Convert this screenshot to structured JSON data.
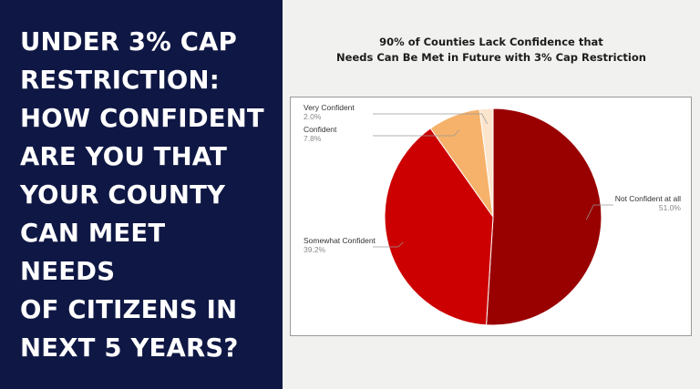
{
  "headline": {
    "lines": [
      "UNDER 3% CAP",
      "RESTRICTION:",
      "HOW CONFIDENT",
      "ARE YOU THAT",
      "YOUR COUNTY",
      "CAN MEET NEEDS",
      "OF CITIZENS IN",
      "NEXT 5 YEARS?"
    ]
  },
  "chart_data": {
    "type": "pie",
    "title_lines": [
      "90% of Counties Lack Confidence that",
      "Needs Can Be Met in Future with 3% Cap Restriction"
    ],
    "slices": [
      {
        "label": "Not Confident at all",
        "value": 51.0,
        "value_label": "51.0%",
        "color": "#990000",
        "label_side": "right"
      },
      {
        "label": "Somewhat Confident",
        "value": 39.2,
        "value_label": "39.2%",
        "color": "#cc0000",
        "label_side": "left"
      },
      {
        "label": "Confident",
        "value": 7.8,
        "value_label": "7.8%",
        "color": "#f6b26b",
        "label_side": "left"
      },
      {
        "label": "Very Confident",
        "value": 2.0,
        "value_label": "2.0%",
        "color": "#fce5cd",
        "label_side": "left"
      }
    ],
    "start": "top",
    "direction": "clockwise",
    "legend": "labels-with-leader-lines"
  }
}
